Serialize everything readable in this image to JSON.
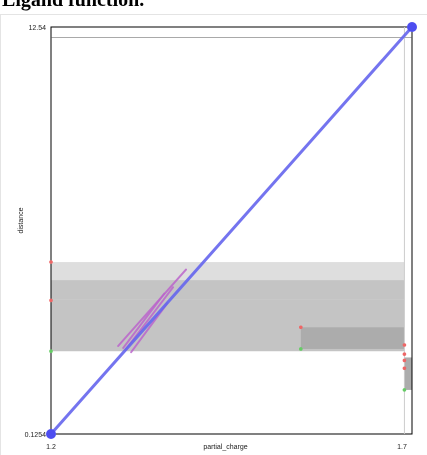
{
  "page": {
    "title": "Ligand function."
  },
  "chart_data": {
    "type": "scatter",
    "title": "",
    "xlabel": "partial_charge",
    "ylabel": "distance",
    "xlim": [
      1.2,
      1.7
    ],
    "ylim": [
      0.1254,
      12.54
    ],
    "x_ticks": [
      "1.2",
      "1.7"
    ],
    "y_ticks": [
      "0.1254",
      "12.54"
    ],
    "grid": false,
    "colors": {
      "diagonal": "#6666ee",
      "diagonal_endpoint": "#4d4df0",
      "band_light": "#dedede",
      "band_mid": "#c4c4c4",
      "band_dark": "#acacac",
      "birth_marker": "#66cc66",
      "death_marker": "#ee6666",
      "short_bars": "#bb66cc",
      "frame": "#000000",
      "vline": "#cccccc"
    },
    "diagonal": {
      "from": [
        1.2,
        0.1254
      ],
      "to": [
        1.7,
        12.54
      ]
    },
    "reference_lines": {
      "y_top": 12.22,
      "x_right": 1.6895
    },
    "bands": [
      {
        "x": [
          1.2,
          1.6895
        ],
        "y": [
          4.82,
          5.37
        ],
        "tone": "light"
      },
      {
        "x": [
          1.2,
          1.6895
        ],
        "y": [
          2.65,
          4.24
        ],
        "tone": "mid"
      },
      {
        "x": [
          1.2,
          1.6895
        ],
        "y": [
          4.24,
          4.82
        ],
        "tone": "mid"
      },
      {
        "x": [
          1.546,
          1.6895
        ],
        "y": [
          2.72,
          3.38
        ],
        "tone": "dark"
      },
      {
        "x": [
          1.6895,
          1.7
        ],
        "y": [
          1.47,
          2.46
        ],
        "tone": "dark"
      }
    ],
    "persistence_points": [
      {
        "birth": 1.2,
        "death": 5.37,
        "x": 1.2,
        "kind": "death"
      },
      {
        "birth": 1.2,
        "death": 4.2,
        "x": 1.2,
        "kind": "death"
      },
      {
        "birth": 1.2,
        "death": 2.65,
        "x": 1.2,
        "kind": "birth"
      },
      {
        "birth": 1.546,
        "death": 3.38,
        "x": 1.546,
        "kind": "death"
      },
      {
        "birth": 1.546,
        "death": 2.72,
        "x": 1.546,
        "kind": "birth"
      },
      {
        "birth": 1.6895,
        "death": 2.84,
        "x": 1.6895,
        "kind": "death"
      },
      {
        "birth": 1.6895,
        "death": 2.56,
        "x": 1.6895,
        "kind": "death"
      },
      {
        "birth": 1.6895,
        "death": 2.37,
        "x": 1.6895,
        "kind": "death"
      },
      {
        "birth": 1.6895,
        "death": 2.13,
        "x": 1.6895,
        "kind": "death"
      },
      {
        "birth": 1.6895,
        "death": 1.47,
        "x": 1.6895,
        "kind": "birth"
      }
    ],
    "short_bars": [
      {
        "x": [
          1.293,
          1.387
        ],
        "y": [
          2.81,
          5.14
        ]
      },
      {
        "x": [
          1.3,
          1.357
        ],
        "y": [
          2.75,
          4.41
        ]
      },
      {
        "x": [
          1.303,
          1.369
        ],
        "y": [
          2.69,
          4.6
        ]
      },
      {
        "x": [
          1.311,
          1.361
        ],
        "y": [
          2.62,
          4.11
        ]
      }
    ]
  }
}
